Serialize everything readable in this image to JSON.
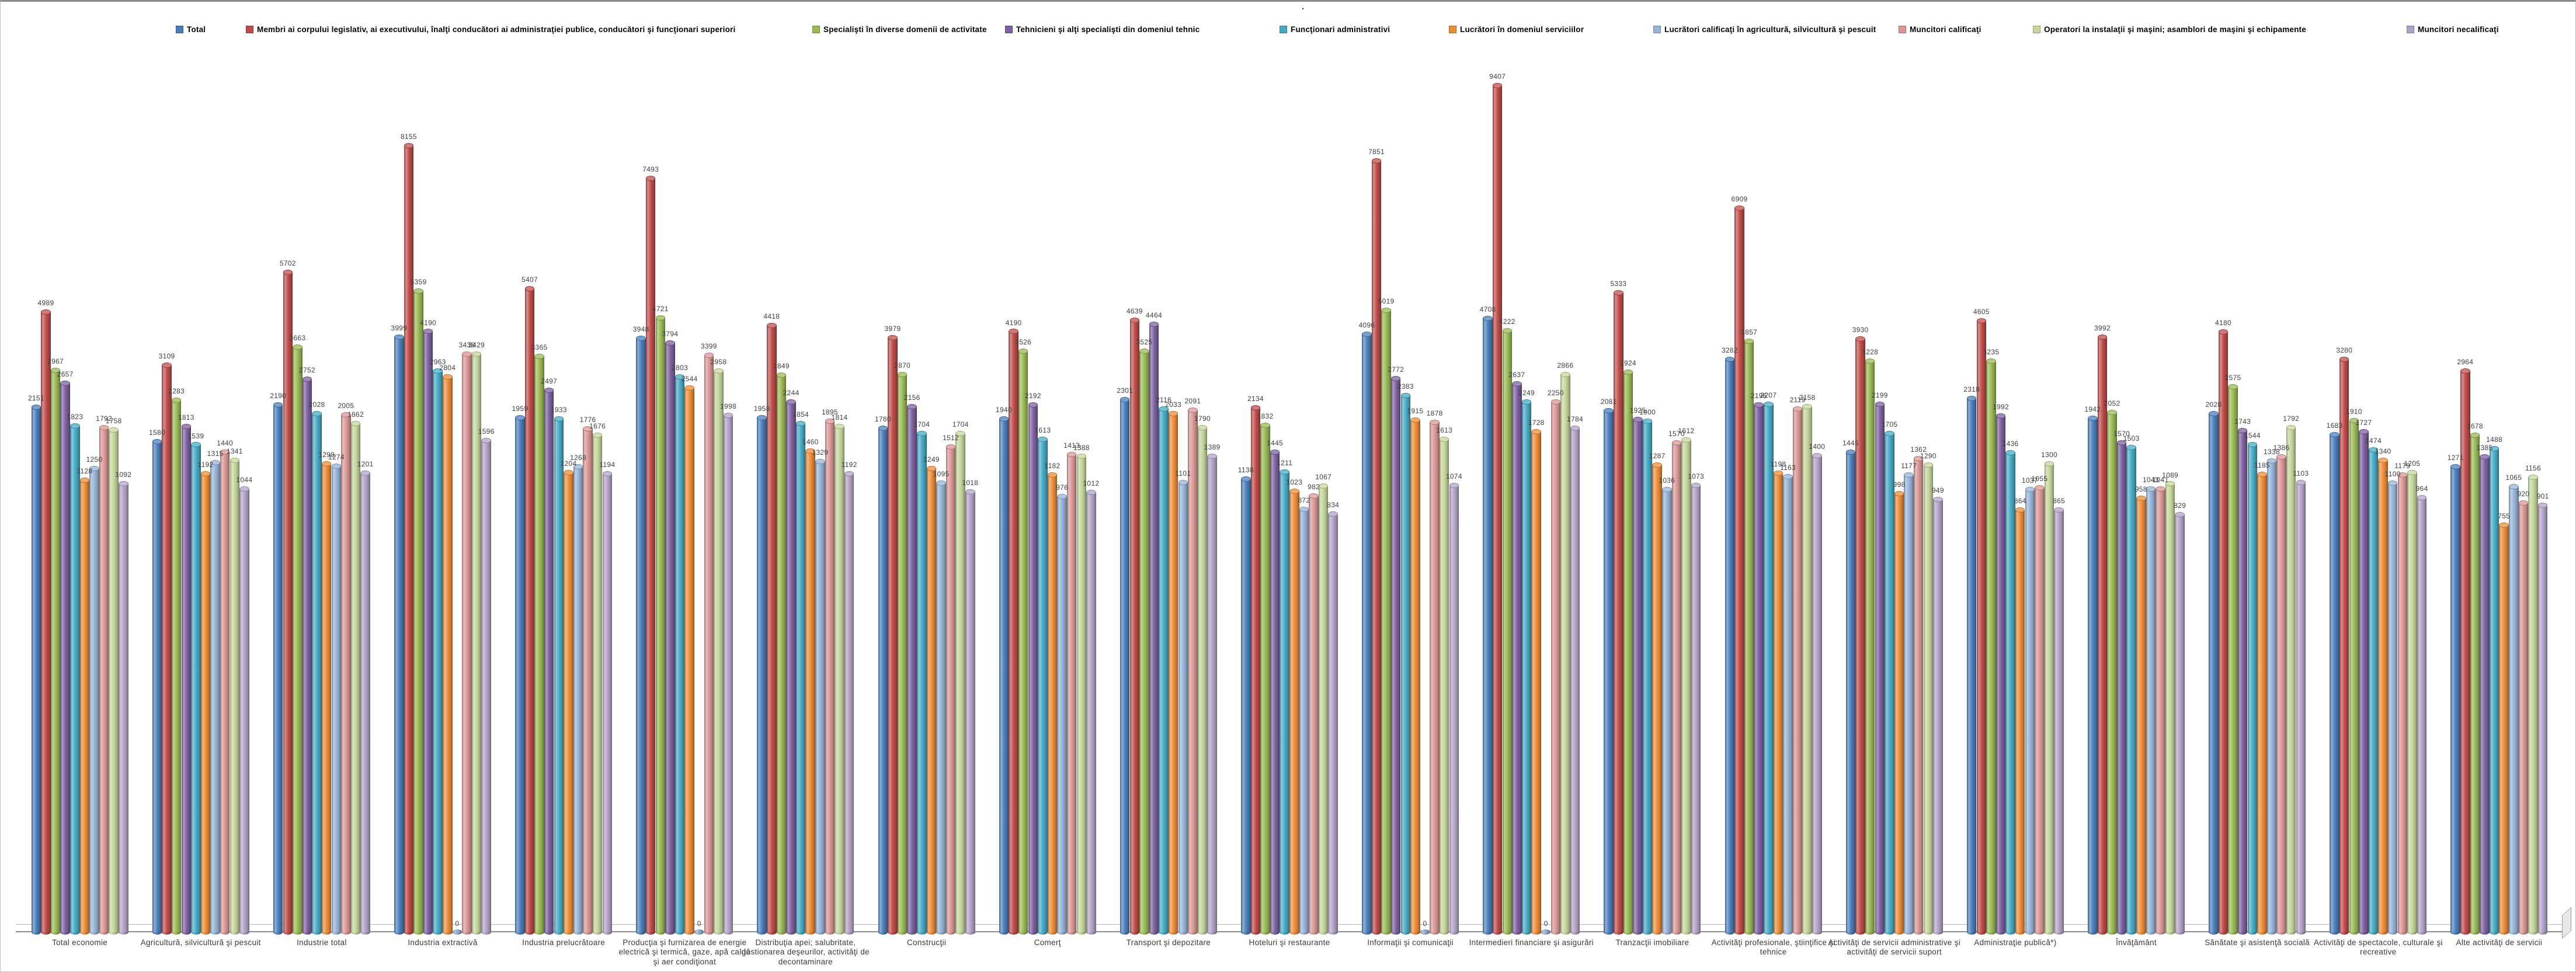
{
  "title": ".",
  "legend": {
    "position": "top",
    "items": [
      "Total",
      "Membri ai corpului legislativ, ai executivului, înalţi conducători ai administraţiei publice, conducători şi funcţionari superiori",
      "Specialişti în diverse domenii de activitate",
      "Tehnicieni şi alţi specialişti din domeniul tehnic",
      "Funcţionari administrativi",
      "Lucrători în domeniul serviciilor",
      "Lucrători calificaţi în agricultură, silvicultură şi pescuit",
      "Muncitori calificaţi",
      "Operatori la instalaţii şi maşini; asamblori de maşini şi echipamente",
      "Muncitori necalificaţi"
    ]
  },
  "chart_data": {
    "type": "bar",
    "subtype": "3d-cylinder-column",
    "title": ".",
    "xlabel": "",
    "ylabel": "",
    "value_axis_visible": false,
    "grid": false,
    "data_labels": "outside-end",
    "legend_position": "top",
    "categories": [
      "Total economie",
      "Agricultură, silvicultură şi pescuit",
      "Industrie total",
      "Industria extractivă",
      "Industria prelucrătoare",
      "Producţia şi furnizarea de energie electrică şi termică, gaze, apă caldă şi aer condiţionat",
      "Distribuţia apei; salubritate, gestionarea deşeurilor, activităţi de decontaminare",
      "Construcţii",
      "Comerţ",
      "Transport şi depozitare",
      "Hoteluri şi restaurante",
      "Informaţii şi comunicaţii",
      "Intermedieri financiare şi asigurări",
      "Tranzacţii imobiliare",
      "Activităţi profesionale, ştiinţifice şi tehnice",
      "Activităţi de servicii administrative şi activităţi de servicii suport",
      "Administraţie publică*)",
      "Învăţământ",
      "Sănătate şi asistenţă socială",
      "Activităţi de spectacole, culturale şi recreative",
      "Alte activităţi de servicii"
    ],
    "series": [
      {
        "name": "Total",
        "color": "#4A7EBB",
        "values": [
          2151,
          1580,
          2190,
          3999,
          1959,
          3948,
          1958,
          1780,
          1940,
          2301,
          1138,
          4096,
          4708,
          2081,
          3282,
          1445,
          2318,
          1942,
          2028,
          1683,
          1271
        ]
      },
      {
        "name": "Membri ai corpului legislativ, ai executivului, înalţi conducători ai administraţiei publice, conducători şi funcţionari superiori",
        "color": "#BE4B48",
        "values": [
          4989,
          3109,
          5702,
          8155,
          5407,
          7493,
          4418,
          3979,
          4190,
          4639,
          2134,
          7851,
          9407,
          5333,
          6909,
          3930,
          4605,
          3992,
          4180,
          3280,
          2964
        ]
      },
      {
        "name": "Specialişti în diverse domenii de activitate",
        "color": "#98B954",
        "values": [
          2967,
          2283,
          3663,
          5359,
          3365,
          4721,
          2849,
          2870,
          3526,
          3525,
          1832,
          5019,
          4222,
          2924,
          3857,
          3228,
          3235,
          2052,
          2575,
          1910,
          1678
        ]
      },
      {
        "name": "Tehnicieni şi alţi specialişti din domeniul tehnic",
        "color": "#7D60A0",
        "values": [
          2657,
          1813,
          2752,
          4190,
          2497,
          3794,
          2244,
          2156,
          2192,
          4464,
          1445,
          2772,
          2637,
          1925,
          2196,
          2199,
          1992,
          1570,
          1743,
          1727,
          1385
        ]
      },
      {
        "name": "Funcţionari administrativi",
        "color": "#46AAC5",
        "values": [
          1823,
          1539,
          2028,
          2963,
          1933,
          2803,
          1854,
          1704,
          1613,
          2116,
          1211,
          2383,
          2249,
          1900,
          2207,
          1705,
          1436,
          1503,
          1544,
          1474,
          1488
        ]
      },
      {
        "name": "Lucrători în domeniul serviciilor",
        "color": "#ED8C37",
        "values": [
          1128,
          1192,
          1298,
          2804,
          1204,
          2544,
          1460,
          1249,
          1182,
          2033,
          1023,
          1915,
          1728,
          1287,
          1198,
          998,
          864,
          958,
          1185,
          1340,
          755
        ]
      },
      {
        "name": "Lucrători calificaţi în agricultură, silvicultură şi pescuit",
        "color": "#95B3D7",
        "values": [
          1250,
          1315,
          1274,
          0,
          1268,
          0,
          1329,
          1095,
          976,
          1101,
          872,
          0,
          0,
          1036,
          1163,
          1177,
          1037,
          1043,
          1338,
          1100,
          1065
        ]
      },
      {
        "name": "Muncitori calificaţi",
        "color": "#D99694",
        "values": [
          1792,
          1440,
          2005,
          3438,
          1776,
          3399,
          1895,
          1512,
          1413,
          2091,
          982,
          1878,
          2250,
          1570,
          2119,
          1362,
          1055,
          1041,
          1386,
          1179,
          920
        ]
      },
      {
        "name": "Operatori la instalaţii şi maşini; asamblori de maşini şi echipamente",
        "color": "#C3D69B",
        "values": [
          1758,
          1341,
          1862,
          3429,
          1676,
          2958,
          1814,
          1704,
          1388,
          1790,
          1067,
          1613,
          2866,
          1612,
          2158,
          1290,
          1300,
          1089,
          1792,
          1205,
          1156
        ]
      },
      {
        "name": "Muncitori necalificaţi",
        "color": "#B3A2C7",
        "values": [
          1092,
          1044,
          1201,
          1596,
          1194,
          1998,
          1192,
          1018,
          1012,
          1389,
          834,
          1074,
          1784,
          1073,
          1400,
          949,
          865,
          829,
          1103,
          964,
          901
        ]
      }
    ]
  }
}
